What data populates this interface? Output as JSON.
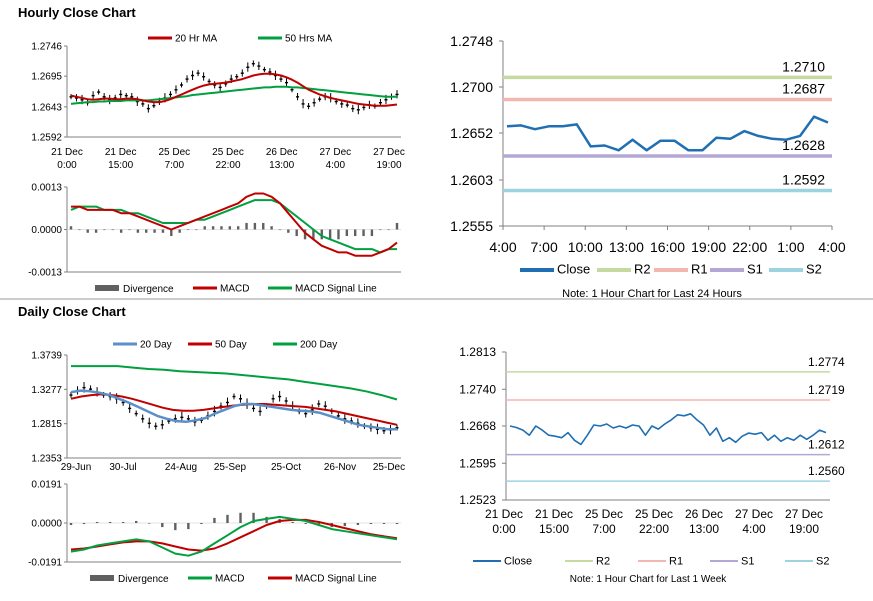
{
  "sections": {
    "hourly_title": "Hourly Close Chart",
    "daily_title": "Daily Close Chart"
  },
  "chart_data": [
    {
      "id": "hourly_price",
      "type": "line",
      "title": "Hourly Close Chart",
      "legend": [
        {
          "label": "20 Hr MA",
          "color": "#c00000"
        },
        {
          "label": "50 Hrs MA",
          "color": "#00a040"
        }
      ],
      "yticks": [
        "1.2746",
        "1.2695",
        "1.2643",
        "1.2592"
      ],
      "ylim": [
        1.2592,
        1.2746
      ],
      "xticks": [
        [
          "21 Dec",
          "0:00"
        ],
        [
          "21 Dec",
          "15:00"
        ],
        [
          "25 Dec",
          "7:00"
        ],
        [
          "25 Dec",
          "22:00"
        ],
        [
          "26 Dec",
          "13:00"
        ],
        [
          "27 Dec",
          "4:00"
        ],
        [
          "27 Dec",
          "19:00"
        ]
      ],
      "candles": [
        1.266,
        1.2658,
        1.2655,
        1.265,
        1.2662,
        1.2668,
        1.266,
        1.2655,
        1.2658,
        1.2664,
        1.2662,
        1.266,
        1.2652,
        1.2648,
        1.264,
        1.2645,
        1.2652,
        1.2658,
        1.2664,
        1.2672,
        1.268,
        1.269,
        1.2696,
        1.27,
        1.2694,
        1.2686,
        1.268,
        1.2676,
        1.2682,
        1.269,
        1.2694,
        1.27,
        1.271,
        1.2716,
        1.2712,
        1.2706,
        1.2702,
        1.2696,
        1.269,
        1.2684,
        1.2672,
        1.266,
        1.2648,
        1.2644,
        1.265,
        1.2656,
        1.266,
        1.2658,
        1.2652,
        1.2648,
        1.2646,
        1.264,
        1.2638,
        1.2642,
        1.2646,
        1.2644,
        1.265,
        1.2655,
        1.266,
        1.2664
      ],
      "ma20": [
        1.2662,
        1.266,
        1.2658,
        1.2656,
        1.2655,
        1.2656,
        1.2657,
        1.2657,
        1.2656,
        1.2656,
        1.2657,
        1.2657,
        1.2656,
        1.2654,
        1.2652,
        1.2651,
        1.2651,
        1.2653,
        1.2656,
        1.266,
        1.2664,
        1.2668,
        1.2672,
        1.2676,
        1.2679,
        1.2681,
        1.2682,
        1.2683,
        1.2684,
        1.2686,
        1.2688,
        1.269,
        1.2693,
        1.2696,
        1.2698,
        1.2699,
        1.2699,
        1.2698,
        1.2696,
        1.2693,
        1.2689,
        1.2684,
        1.2678,
        1.2672,
        1.2668,
        1.2664,
        1.2661,
        1.2658,
        1.2656,
        1.2654,
        1.2652,
        1.265,
        1.2648,
        1.2647,
        1.2646,
        1.2645,
        1.2645,
        1.2645,
        1.2646,
        1.2647
      ],
      "ma50": [
        1.2648,
        1.2649,
        1.265,
        1.2651,
        1.2651,
        1.2652,
        1.2652,
        1.2653,
        1.2653,
        1.2653,
        1.2654,
        1.2654,
        1.2654,
        1.2654,
        1.2654,
        1.2655,
        1.2656,
        1.2657,
        1.2658,
        1.2659,
        1.266,
        1.2661,
        1.2663,
        1.2664,
        1.2665,
        1.2666,
        1.2667,
        1.2668,
        1.2669,
        1.267,
        1.2671,
        1.2672,
        1.2673,
        1.2674,
        1.2675,
        1.2676,
        1.2676,
        1.2677,
        1.2677,
        1.2677,
        1.2676,
        1.2676,
        1.2675,
        1.2674,
        1.2673,
        1.2672,
        1.2671,
        1.267,
        1.2669,
        1.2668,
        1.2667,
        1.2666,
        1.2665,
        1.2664,
        1.2663,
        1.2662,
        1.2661,
        1.266,
        1.266,
        1.266
      ]
    },
    {
      "id": "hourly_macd",
      "type": "line",
      "legend": [
        {
          "label": "Divergence",
          "color": "#606060"
        },
        {
          "label": "MACD",
          "color": "#c00000"
        },
        {
          "label": "MACD Signal Line",
          "color": "#00a040"
        }
      ],
      "yticks": [
        "0.0013",
        "0.0000",
        "-0.0013"
      ],
      "ylim": [
        -0.0013,
        0.0013
      ],
      "macd": [
        0.0007,
        0.0007,
        0.0006,
        0.0006,
        0.0006,
        0.0006,
        0.0005,
        0.0005,
        0.0004,
        0.0003,
        0.0002,
        0.0001,
        0.0,
        0.0001,
        0.0002,
        0.0003,
        0.0004,
        0.0005,
        0.0006,
        0.0007,
        0.0008,
        0.001,
        0.0011,
        0.0011,
        0.001,
        0.0008,
        0.0005,
        0.0002,
        -0.0001,
        -0.0003,
        -0.0005,
        -0.0006,
        -0.0007,
        -0.0007,
        -0.0008,
        -0.0008,
        -0.0008,
        -0.0007,
        -0.0006,
        -0.0004
      ],
      "signal": [
        0.0006,
        0.0007,
        0.0007,
        0.0007,
        0.0006,
        0.0006,
        0.0006,
        0.0005,
        0.0005,
        0.0004,
        0.0003,
        0.0002,
        0.0002,
        0.0002,
        0.0002,
        0.0003,
        0.0003,
        0.0004,
        0.0005,
        0.0006,
        0.0007,
        0.0008,
        0.0009,
        0.0009,
        0.0009,
        0.0008,
        0.0006,
        0.0004,
        0.0002,
        0.0,
        -0.0002,
        -0.0003,
        -0.0004,
        -0.0005,
        -0.0006,
        -0.0006,
        -0.0006,
        -0.0007,
        -0.0006,
        -0.0006
      ],
      "divergence": [
        0.0001,
        0.0,
        -0.0001,
        -0.0001,
        0.0,
        0.0,
        -0.0001,
        0.0,
        -0.0001,
        -0.0001,
        -0.0001,
        -0.0001,
        -0.0002,
        -0.0001,
        0.0,
        0.0,
        0.0001,
        0.0001,
        0.0001,
        0.0001,
        0.0001,
        0.0002,
        0.0002,
        0.0002,
        0.0001,
        0.0,
        -0.0001,
        -0.0002,
        -0.0003,
        -0.0003,
        -0.0003,
        -0.0003,
        -0.0003,
        -0.0002,
        -0.0002,
        -0.0002,
        -0.0002,
        0.0,
        0.0,
        0.0002
      ]
    },
    {
      "id": "hourly_24h",
      "type": "line",
      "title": "Note: 1 Hour Chart for Last 24 Hours",
      "yticks": [
        "1.2748",
        "1.2700",
        "1.2652",
        "1.2603",
        "1.2555"
      ],
      "ylim": [
        1.2555,
        1.2748
      ],
      "xticks": [
        "4:00",
        "7:00",
        "10:00",
        "13:00",
        "16:00",
        "19:00",
        "22:00",
        "1:00",
        "4:00"
      ],
      "close": [
        1.2659,
        1.266,
        1.2656,
        1.2659,
        1.2659,
        1.2661,
        1.2638,
        1.2639,
        1.2634,
        1.2645,
        1.2634,
        1.2644,
        1.2644,
        1.2634,
        1.2634,
        1.2647,
        1.2646,
        1.2654,
        1.2649,
        1.2646,
        1.2645,
        1.2649,
        1.2669,
        1.2663
      ],
      "levels": [
        {
          "name": "R2",
          "value": 1.271,
          "label": "1.2710",
          "color": "#c6d9a0"
        },
        {
          "name": "R1",
          "value": 1.2687,
          "label": "1.2687",
          "color": "#f2b8b0"
        },
        {
          "name": "S1",
          "value": 1.2628,
          "label": "1.2628",
          "color": "#b4a7d6"
        },
        {
          "name": "S2",
          "value": 1.2592,
          "label": "1.2592",
          "color": "#9dd3e0"
        }
      ],
      "legend": [
        {
          "label": "Close",
          "color": "#1f6fb2"
        },
        {
          "label": "R2",
          "color": "#c6d9a0"
        },
        {
          "label": "R1",
          "color": "#f2b8b0"
        },
        {
          "label": "S1",
          "color": "#b4a7d6"
        },
        {
          "label": "S2",
          "color": "#9dd3e0"
        }
      ]
    },
    {
      "id": "daily_price",
      "type": "line",
      "title": "Daily Close Chart",
      "legend": [
        {
          "label": "20 Day",
          "color": "#5b8fc8"
        },
        {
          "label": "50 Day",
          "color": "#c00000"
        },
        {
          "label": "200 Day",
          "color": "#00a040"
        }
      ],
      "yticks": [
        "1.3739",
        "1.3277",
        "1.2815",
        "1.2353"
      ],
      "ylim": [
        1.2353,
        1.3739
      ],
      "xticks": [
        "29-Jun",
        "30-Jul",
        "24-Aug",
        "25-Sep",
        "25-Oct",
        "26-Nov",
        "25-Dec"
      ],
      "candles": [
        1.32,
        1.326,
        1.33,
        1.328,
        1.324,
        1.32,
        1.318,
        1.315,
        1.31,
        1.302,
        1.295,
        1.288,
        1.282,
        1.278,
        1.28,
        1.285,
        1.288,
        1.29,
        1.288,
        1.284,
        1.286,
        1.292,
        1.298,
        1.305,
        1.31,
        1.318,
        1.315,
        1.308,
        1.302,
        1.298,
        1.305,
        1.315,
        1.318,
        1.312,
        1.305,
        1.298,
        1.295,
        1.3,
        1.308,
        1.305,
        1.298,
        1.292,
        1.288,
        1.285,
        1.282,
        1.278,
        1.276,
        1.274,
        1.272,
        1.273,
        1.276
      ],
      "ma20": [
        1.324,
        1.326,
        1.325,
        1.323,
        1.32,
        1.315,
        1.31,
        1.304,
        1.298,
        1.292,
        1.288,
        1.285,
        1.284,
        1.286,
        1.289,
        1.295,
        1.3,
        1.305,
        1.308,
        1.308,
        1.306,
        1.304,
        1.302,
        1.3,
        1.299,
        1.298,
        1.296,
        1.292,
        1.288,
        1.284,
        1.28,
        1.278,
        1.276,
        1.274,
        1.274
      ],
      "ma50": [
        1.315,
        1.318,
        1.32,
        1.321,
        1.32,
        1.318,
        1.315,
        1.311,
        1.307,
        1.303,
        1.3,
        1.299,
        1.299,
        1.3,
        1.302,
        1.304,
        1.306,
        1.307,
        1.308,
        1.308,
        1.307,
        1.306,
        1.305,
        1.304,
        1.302,
        1.3,
        1.298,
        1.295,
        1.292,
        1.289,
        1.286,
        1.283,
        1.28
      ],
      "ma200": [
        1.359,
        1.359,
        1.359,
        1.359,
        1.357,
        1.355,
        1.354,
        1.352,
        1.351,
        1.35,
        1.349,
        1.347,
        1.345,
        1.343,
        1.341,
        1.338,
        1.335,
        1.332,
        1.329,
        1.325,
        1.32,
        1.314
      ]
    },
    {
      "id": "daily_macd",
      "type": "line",
      "legend": [
        {
          "label": "Divergence",
          "color": "#606060"
        },
        {
          "label": "MACD",
          "color": "#00a040"
        },
        {
          "label": "MACD Signal Line",
          "color": "#c00000"
        }
      ],
      "yticks": [
        "0.0191",
        "0.0000",
        "-0.0191"
      ],
      "ylim": [
        -0.0191,
        0.0191
      ],
      "macd": [
        -0.014,
        -0.013,
        -0.011,
        -0.01,
        -0.009,
        -0.008,
        -0.009,
        -0.012,
        -0.015,
        -0.016,
        -0.014,
        -0.01,
        -0.006,
        -0.002,
        0.001,
        0.002,
        0.003,
        0.002,
        0.001,
        -0.001,
        -0.003,
        -0.004,
        -0.005,
        -0.006,
        -0.007,
        -0.008
      ],
      "signal": [
        -0.013,
        -0.0125,
        -0.0115,
        -0.0105,
        -0.0095,
        -0.009,
        -0.009,
        -0.01,
        -0.0115,
        -0.013,
        -0.0135,
        -0.0125,
        -0.01,
        -0.007,
        -0.004,
        -0.001,
        0.001,
        0.0015,
        0.0015,
        0.0005,
        -0.001,
        -0.0025,
        -0.004,
        -0.0055,
        -0.0065,
        -0.0075
      ],
      "divergence": [
        -0.001,
        -0.0005,
        0.0005,
        0.0005,
        0.0005,
        0.001,
        0.0,
        -0.002,
        -0.0035,
        -0.003,
        -0.0005,
        0.0025,
        0.004,
        0.005,
        0.005,
        0.003,
        0.002,
        0.0005,
        -0.0005,
        -0.0015,
        -0.002,
        -0.0015,
        -0.001,
        -0.0005,
        -0.0005,
        -0.0005
      ]
    },
    {
      "id": "daily_week",
      "type": "line",
      "title": "Note: 1 Hour Chart for Last 1 Week",
      "yticks": [
        "1.2813",
        "1.2740",
        "1.2668",
        "1.2595",
        "1.2523"
      ],
      "ylim": [
        1.2523,
        1.2813
      ],
      "xticks": [
        [
          "21 Dec",
          "0:00"
        ],
        [
          "21 Dec",
          "15:00"
        ],
        [
          "25 Dec",
          "7:00"
        ],
        [
          "25 Dec",
          "22:00"
        ],
        [
          "26 Dec",
          "13:00"
        ],
        [
          "27 Dec",
          "4:00"
        ],
        [
          "27 Dec",
          "19:00"
        ]
      ],
      "close": [
        1.2668,
        1.2665,
        1.266,
        1.265,
        1.2668,
        1.266,
        1.265,
        1.2648,
        1.2645,
        1.2655,
        1.264,
        1.2632,
        1.265,
        1.267,
        1.2668,
        1.2672,
        1.2664,
        1.2668,
        1.2664,
        1.267,
        1.2668,
        1.265,
        1.2668,
        1.2662,
        1.2672,
        1.268,
        1.269,
        1.2688,
        1.2692,
        1.268,
        1.267,
        1.265,
        1.2664,
        1.2638,
        1.2645,
        1.2636,
        1.2648,
        1.2654,
        1.2652,
        1.2655,
        1.264,
        1.265,
        1.2638,
        1.2645,
        1.264,
        1.265,
        1.2642,
        1.265,
        1.266,
        1.2655
      ],
      "levels": [
        {
          "name": "R2",
          "value": 1.2774,
          "label": "1.2774",
          "color": "#c6d9a0"
        },
        {
          "name": "R1",
          "value": 1.2719,
          "label": "1.2719",
          "color": "#f2b8b0"
        },
        {
          "name": "S1",
          "value": 1.2612,
          "label": "1.2612",
          "color": "#b4a7d6"
        },
        {
          "name": "S2",
          "value": 1.256,
          "label": "1.2560",
          "color": "#9dd3e0"
        }
      ],
      "legend": [
        {
          "label": "Close",
          "color": "#1f6fb2"
        },
        {
          "label": "R2",
          "color": "#c6d9a0"
        },
        {
          "label": "R1",
          "color": "#f2b8b0"
        },
        {
          "label": "S1",
          "color": "#b4a7d6"
        },
        {
          "label": "S2",
          "color": "#9dd3e0"
        }
      ]
    }
  ]
}
